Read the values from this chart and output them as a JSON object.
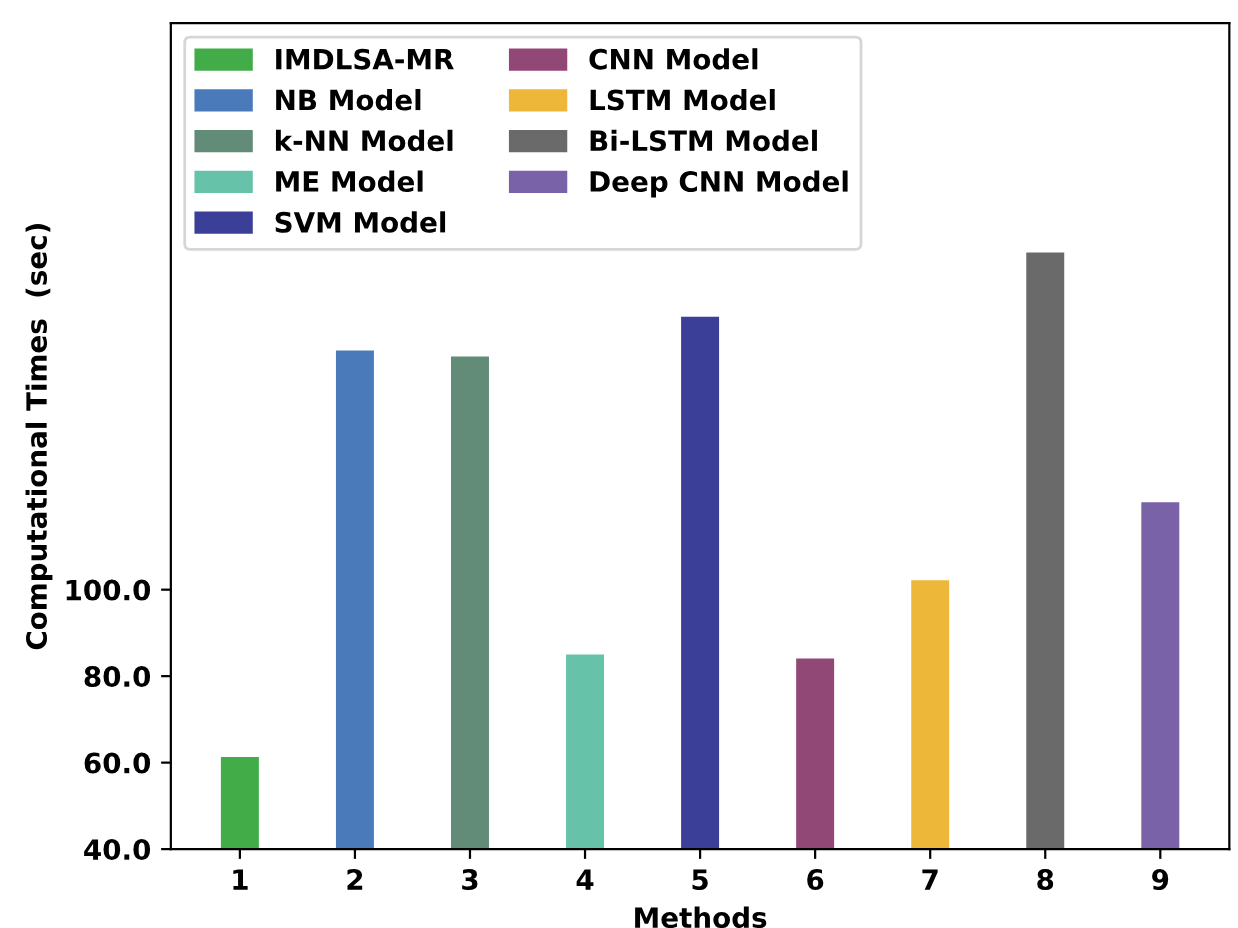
{
  "chart_data": {
    "type": "bar",
    "xlabel": "Methods",
    "ylabel": "Computational Times  (sec)",
    "categories": [
      "1",
      "2",
      "3",
      "4",
      "5",
      "6",
      "7",
      "8",
      "9"
    ],
    "series": [
      {
        "name": "IMDLSA-MR",
        "color": "#41ac48",
        "values": [
          61.3,
          null,
          null,
          null,
          null,
          null,
          null,
          null,
          null
        ]
      },
      {
        "name": "NB Model",
        "color": "#4a7aba",
        "values": [
          null,
          155.3,
          null,
          null,
          null,
          null,
          null,
          null,
          null
        ]
      },
      {
        "name": "k-NN Model",
        "color": "#628c77",
        "values": [
          null,
          null,
          153.9,
          null,
          null,
          null,
          null,
          null,
          null
        ]
      },
      {
        "name": "ME Model",
        "color": "#66c2a8",
        "values": [
          null,
          null,
          null,
          85,
          null,
          null,
          null,
          null,
          null
        ]
      },
      {
        "name": "SVM Model",
        "color": "#3b3f98",
        "values": [
          null,
          null,
          null,
          null,
          163.1,
          null,
          null,
          null,
          null
        ]
      },
      {
        "name": "CNN Model",
        "color": "#914876",
        "values": [
          null,
          null,
          null,
          null,
          null,
          84.1,
          null,
          null,
          null
        ]
      },
      {
        "name": "LSTM Model",
        "color": "#edb83a",
        "values": [
          null,
          null,
          null,
          null,
          null,
          null,
          102.2,
          null,
          null
        ]
      },
      {
        "name": "Bi-LSTM Model",
        "color": "#6a6a6a",
        "values": [
          null,
          null,
          null,
          null,
          null,
          null,
          null,
          178,
          null
        ]
      },
      {
        "name": "Deep CNN Model",
        "color": "#7a62a8",
        "values": [
          null,
          null,
          null,
          null,
          null,
          null,
          null,
          null,
          120.2
        ]
      }
    ],
    "ylim": [
      40,
      231
    ],
    "yticks": [
      {
        "value": 40,
        "label": "40.0"
      },
      {
        "value": 60,
        "label": "60.0"
      },
      {
        "value": 80,
        "label": "80.0"
      },
      {
        "value": 100,
        "label": "100.0"
      }
    ],
    "grid": false,
    "legend": "top left"
  }
}
